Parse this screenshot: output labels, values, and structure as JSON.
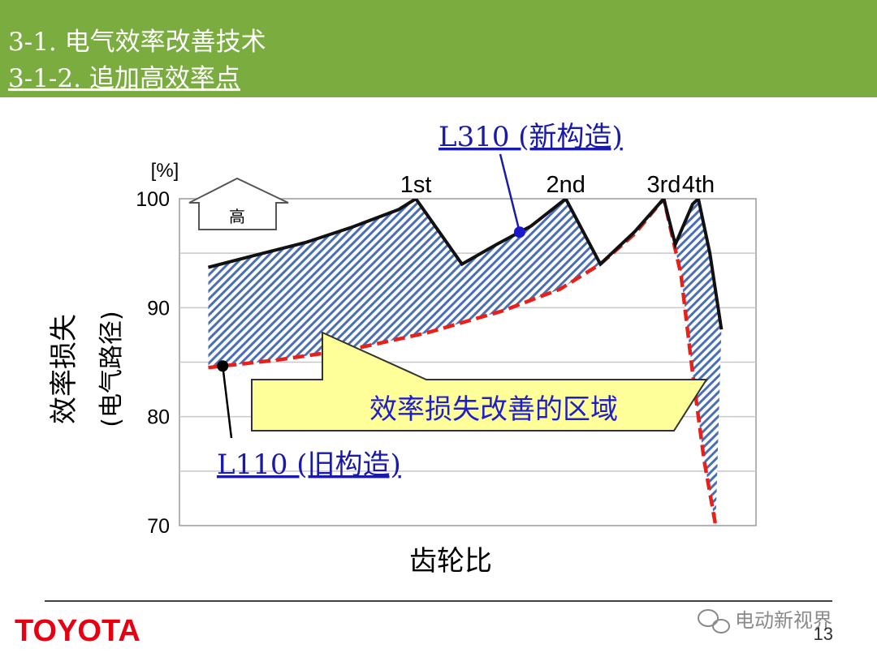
{
  "header": {
    "section_title": "3-1. 电气效率改善技术",
    "subsection_title": "3-1-2. 追加高效率点",
    "bg_color": "#7aac3f"
  },
  "chart_data": {
    "type": "line",
    "y_unit": "[%]",
    "ylabel_line1": "效率损失",
    "ylabel_line2": "(电气路径)",
    "xlabel": "齿轮比",
    "ylim": [
      70,
      100
    ],
    "yticks": [
      70,
      80,
      90,
      100
    ],
    "xlim": [
      0,
      100
    ],
    "grid": true,
    "gear_labels": [
      {
        "label": "1st",
        "x": 41
      },
      {
        "label": "2nd",
        "x": 67
      },
      {
        "label": "3rd",
        "x": 84
      },
      {
        "label": "4th",
        "x": 90
      }
    ],
    "series": [
      {
        "name": "L310 (新构造)",
        "color": "#111111",
        "style": "solid",
        "x": [
          5,
          13,
          22,
          30,
          38,
          41,
          49,
          55,
          61,
          67,
          73,
          79,
          84,
          86,
          89,
          90,
          92,
          94
        ],
        "y": [
          93.7,
          94.8,
          96.0,
          97.4,
          99.0,
          100.0,
          94.0,
          95.8,
          97.5,
          100.0,
          94.0,
          97.0,
          100.0,
          95.8,
          99.5,
          100.0,
          95.0,
          88.0
        ]
      },
      {
        "name": "L110 (旧构造)",
        "color": "#e8201a",
        "style": "dashed",
        "x": [
          5,
          17,
          30,
          43,
          56,
          66,
          73,
          79,
          84,
          87,
          89,
          91,
          93
        ],
        "y": [
          84.5,
          85.2,
          86.2,
          87.7,
          89.7,
          91.7,
          94.0,
          96.8,
          100.0,
          93.0,
          84.0,
          76.0,
          70.0
        ]
      }
    ],
    "shaded_region": "效率损失改善的区域",
    "up_arrow_label": "高"
  },
  "footer": {
    "brand": "TOYOTA",
    "page_number": "13",
    "watermark": "电动新视界",
    "brand_color": "#e60012"
  }
}
